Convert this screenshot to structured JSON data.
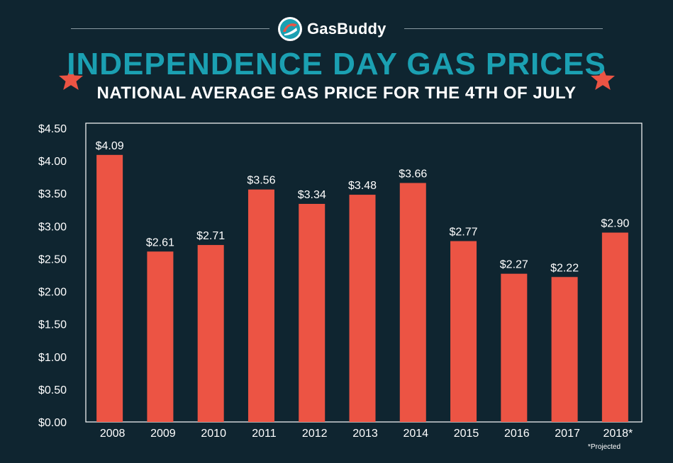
{
  "brand": {
    "name": "GasBuddy"
  },
  "header": {
    "title": "INDEPENDENCE DAY GAS PRICES",
    "subtitle": "NATIONAL AVERAGE GAS PRICE FOR THE 4TH OF JULY"
  },
  "footnote": "*Projected",
  "colors": {
    "background": "#0f2530",
    "bar": "#ec5444",
    "title": "#1ba0b2",
    "star": "#ec5444",
    "axis": "#ffffff"
  },
  "chart_data": {
    "type": "bar",
    "categories": [
      "2008",
      "2009",
      "2010",
      "2011",
      "2012",
      "2013",
      "2014",
      "2015",
      "2016",
      "2017",
      "2018*"
    ],
    "values": [
      4.09,
      2.61,
      2.71,
      3.56,
      3.34,
      3.48,
      3.66,
      2.77,
      2.27,
      2.22,
      2.9
    ],
    "value_labels": [
      "$4.09",
      "$2.61",
      "$2.71",
      "$3.56",
      "$3.34",
      "$3.48",
      "$3.66",
      "$2.77",
      "$2.27",
      "$2.22",
      "$2.90"
    ],
    "y_ticks": [
      0,
      0.5,
      1.0,
      1.5,
      2.0,
      2.5,
      3.0,
      3.5,
      4.0,
      4.5
    ],
    "y_tick_labels": [
      "$0.00",
      "$0.50",
      "$1.00",
      "$1.50",
      "$2.00",
      "$2.50",
      "$3.00",
      "$3.50",
      "$4.00",
      "$4.50"
    ],
    "ylim": [
      0,
      4.5
    ],
    "grid": false,
    "legend": "none"
  }
}
